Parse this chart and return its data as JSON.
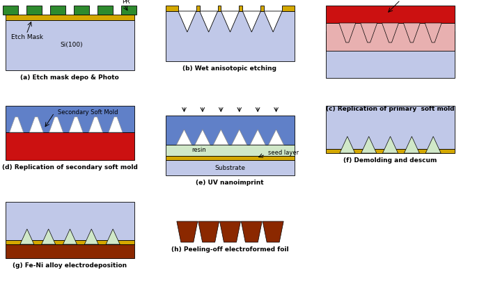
{
  "colors": {
    "si_substrate": "#c0c8e8",
    "etch_mask_yellow": "#d4a800",
    "pr_green": "#2e8b2e",
    "soft_mold_red": "#cc1111",
    "soft_mold_pink": "#e8b0b0",
    "resin_light": "#d0e8c8",
    "seed_layer_yellow": "#d4a800",
    "fe_ni_brown": "#8b2800",
    "blue_mold": "#6080c8",
    "white": "#ffffff",
    "black": "#000000",
    "bg": "#ffffff",
    "light_blue": "#a0b8e0"
  },
  "captions": [
    "(a) Etch mask depo & Photo",
    "(b) Wet anisotopic etching",
    "(c) Replication of primary  soft mold",
    "(d) Replication of secondary soft mold",
    "(e) UV nanoimprint",
    "(f) Demolding and descum",
    "(g) Fe-Ni alloy electrodeposition",
    "(h) Peeling-off electroformed foil"
  ]
}
